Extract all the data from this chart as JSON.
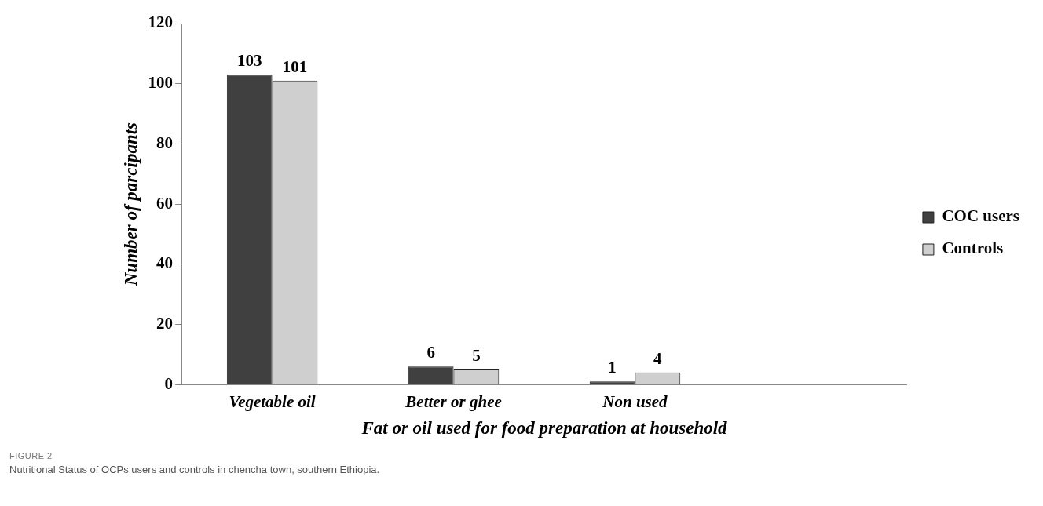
{
  "chart_data": {
    "type": "bar",
    "xlabel": "Fat or oil used for food preparation at household",
    "ylabel": "Number of parcipants",
    "categories": [
      "Vegetable oil",
      "Better or ghee",
      "Non used",
      null
    ],
    "series": [
      {
        "name": "COC users",
        "color": "#404040",
        "values": [
          103,
          6,
          1,
          null
        ]
      },
      {
        "name": "Controls",
        "color": "#cfcfcf",
        "values": [
          101,
          5,
          4,
          null
        ]
      }
    ],
    "ylim": [
      0,
      120
    ],
    "yticks": [
      0,
      20,
      40,
      60,
      80,
      100,
      120
    ],
    "grid": false,
    "legend": "right",
    "data_labels": true,
    "annotations": [
      "FIGURE 2",
      "Nutritional Status of OCPs users and controls in chencha town, southern Ethiopia."
    ]
  }
}
